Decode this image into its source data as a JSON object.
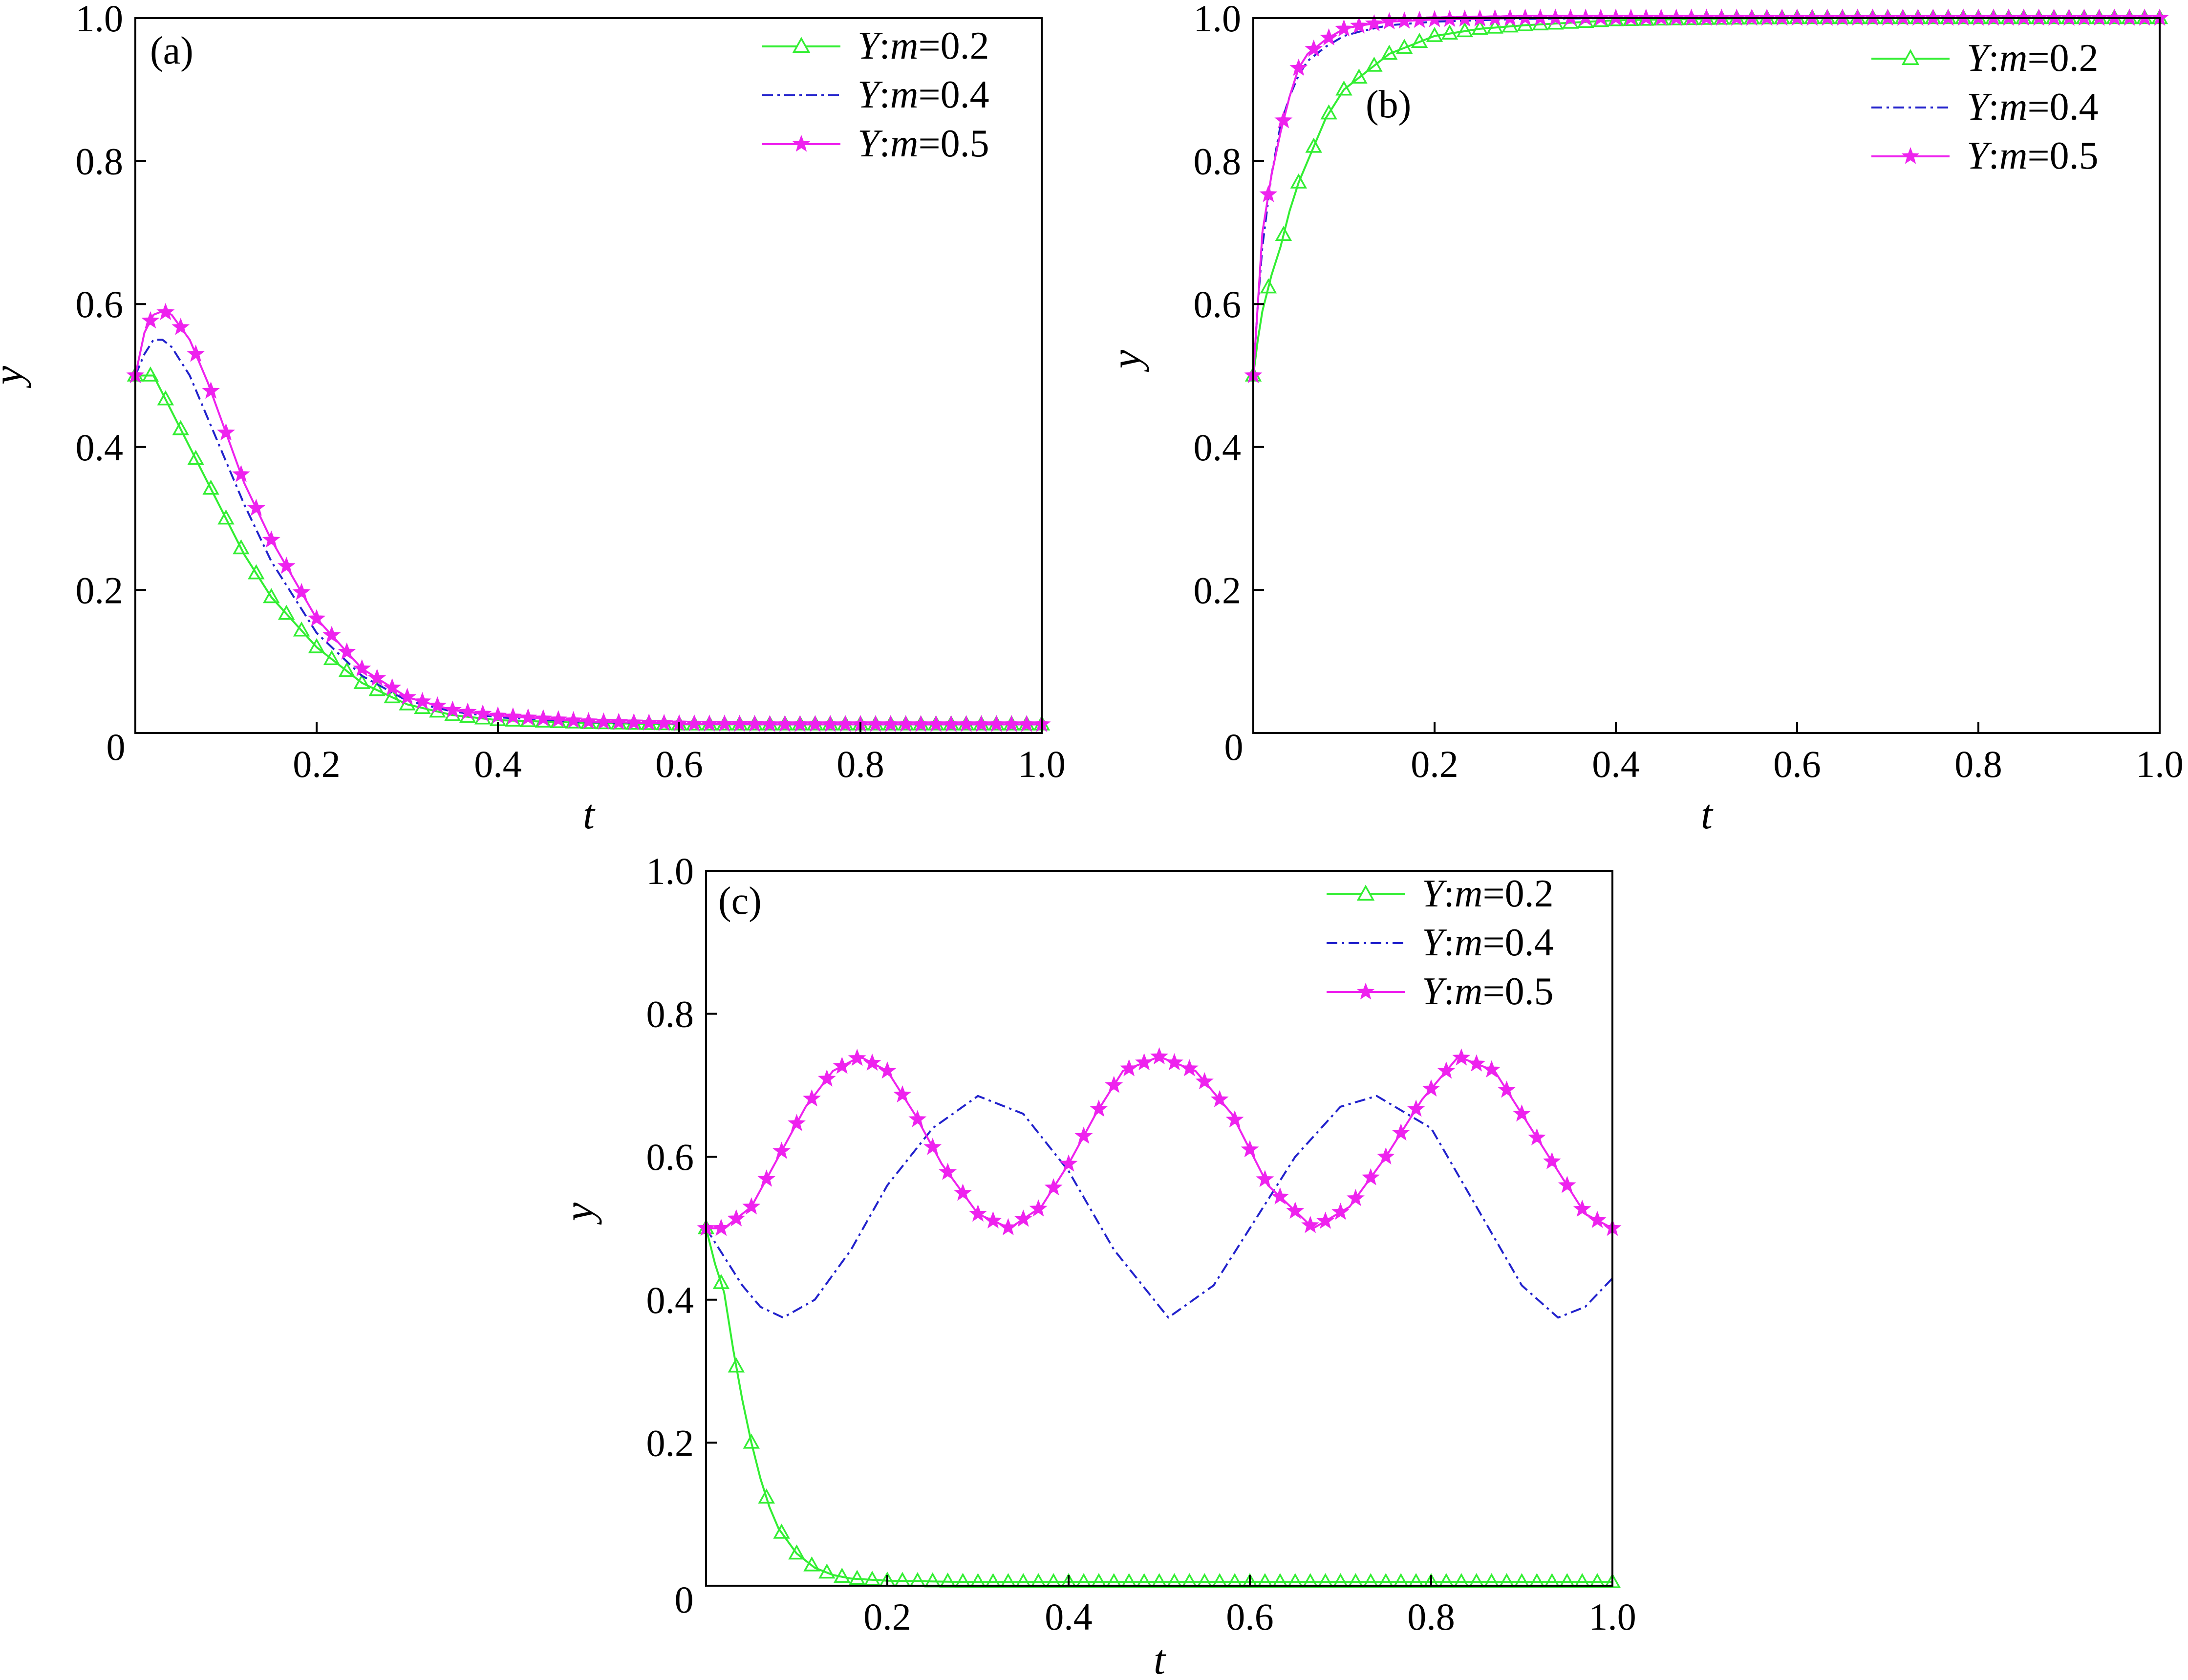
{
  "figure": {
    "colors": {
      "green": "#33ee33",
      "blue": "#2222cc",
      "magenta": "#ee22ee"
    },
    "legend_labels": [
      {
        "series": "Y",
        "param": "m",
        "value": "=0.2",
        "style": "solid-triangle",
        "color": "#33ee33"
      },
      {
        "series": "Y",
        "param": "m",
        "value": "=0.4",
        "style": "dash-dot",
        "color": "#2222cc"
      },
      {
        "series": "Y",
        "param": "m",
        "value": "=0.5",
        "style": "solid-star",
        "color": "#ee22ee"
      }
    ]
  },
  "chart_data": [
    {
      "panel": "(a)",
      "type": "line",
      "xlabel": "t",
      "ylabel": "y",
      "xlim": [
        0,
        1.0
      ],
      "ylim": [
        0,
        1.0
      ],
      "xticks": [
        "0.2",
        "0.4",
        "0.6",
        "0.8",
        "1.0"
      ],
      "yticks": [
        "0.2",
        "0.4",
        "0.6",
        "0.8",
        "1.0"
      ],
      "origin_label": "0",
      "legend": "top-right",
      "series": [
        {
          "name": "Y:m=0.2",
          "color": "#33ee33",
          "marker": "triangle",
          "x": [
            0,
            0.02,
            0.04,
            0.06,
            0.08,
            0.1,
            0.12,
            0.15,
            0.2,
            0.25,
            0.3,
            0.35,
            0.4,
            0.5,
            0.6,
            0.7,
            0.8,
            0.9,
            1.0
          ],
          "y": [
            0.5,
            0.5,
            0.45,
            0.4,
            0.35,
            0.3,
            0.25,
            0.19,
            0.12,
            0.07,
            0.04,
            0.025,
            0.018,
            0.014,
            0.012,
            0.012,
            0.012,
            0.012,
            0.012
          ]
        },
        {
          "name": "Y:m=0.4",
          "color": "#2222cc",
          "marker": "none",
          "x": [
            0,
            0.01,
            0.02,
            0.03,
            0.04,
            0.06,
            0.08,
            0.1,
            0.12,
            0.15,
            0.2,
            0.25,
            0.3,
            0.35,
            0.4,
            0.5,
            0.6,
            0.7,
            0.8,
            0.9,
            1.0
          ],
          "y": [
            0.5,
            0.53,
            0.55,
            0.55,
            0.54,
            0.5,
            0.44,
            0.38,
            0.32,
            0.24,
            0.14,
            0.08,
            0.045,
            0.03,
            0.022,
            0.015,
            0.013,
            0.012,
            0.012,
            0.012,
            0.012
          ]
        },
        {
          "name": "Y:m=0.5",
          "color": "#ee22ee",
          "marker": "star",
          "x": [
            0,
            0.01,
            0.02,
            0.03,
            0.04,
            0.06,
            0.08,
            0.1,
            0.12,
            0.15,
            0.2,
            0.25,
            0.3,
            0.35,
            0.4,
            0.5,
            0.6,
            0.7,
            0.8,
            0.9,
            1.0
          ],
          "y": [
            0.5,
            0.56,
            0.585,
            0.59,
            0.585,
            0.55,
            0.49,
            0.42,
            0.35,
            0.27,
            0.16,
            0.09,
            0.05,
            0.032,
            0.024,
            0.016,
            0.013,
            0.012,
            0.012,
            0.012,
            0.012
          ]
        }
      ]
    },
    {
      "panel": "(b)",
      "type": "line",
      "xlabel": "t",
      "ylabel": "y",
      "xlim": [
        0,
        1.0
      ],
      "ylim": [
        0,
        1.0
      ],
      "xticks": [
        "0.2",
        "0.4",
        "0.6",
        "0.8",
        "1.0"
      ],
      "yticks": [
        "0.2",
        "0.4",
        "0.6",
        "0.8",
        "1.0"
      ],
      "origin_label": "0",
      "legend": "top-right",
      "series": [
        {
          "name": "Y:m=0.2",
          "color": "#33ee33",
          "marker": "triangle",
          "x": [
            0,
            0.005,
            0.01,
            0.02,
            0.03,
            0.04,
            0.05,
            0.06,
            0.08,
            0.1,
            0.12,
            0.15,
            0.2,
            0.25,
            0.3,
            0.4,
            0.5,
            0.6,
            0.8,
            1.0
          ],
          "y": [
            0.5,
            0.55,
            0.59,
            0.64,
            0.68,
            0.73,
            0.77,
            0.8,
            0.86,
            0.9,
            0.92,
            0.95,
            0.975,
            0.985,
            0.99,
            0.997,
            0.999,
            1.0,
            1.0,
            1.0
          ]
        },
        {
          "name": "Y:m=0.4",
          "color": "#2222cc",
          "marker": "none",
          "x": [
            0,
            0.005,
            0.01,
            0.02,
            0.03,
            0.04,
            0.05,
            0.06,
            0.08,
            0.1,
            0.12,
            0.15,
            0.2,
            0.3,
            0.4,
            0.6,
            0.8,
            1.0
          ],
          "y": [
            0.5,
            0.6,
            0.68,
            0.78,
            0.85,
            0.89,
            0.92,
            0.94,
            0.96,
            0.975,
            0.982,
            0.99,
            0.995,
            0.999,
            1.0,
            1.0,
            1.0,
            1.0
          ]
        },
        {
          "name": "Y:m=0.5",
          "color": "#ee22ee",
          "marker": "star",
          "x": [
            0,
            0.005,
            0.01,
            0.02,
            0.03,
            0.04,
            0.05,
            0.06,
            0.08,
            0.1,
            0.12,
            0.15,
            0.2,
            0.3,
            0.4,
            0.6,
            0.8,
            1.0
          ],
          "y": [
            0.5,
            0.6,
            0.7,
            0.78,
            0.84,
            0.89,
            0.93,
            0.95,
            0.97,
            0.985,
            0.99,
            0.995,
            0.998,
            1.0,
            1.0,
            1.0,
            1.0,
            1.0
          ]
        }
      ]
    },
    {
      "panel": "(c)",
      "type": "line",
      "xlabel": "t",
      "ylabel": "y",
      "xlim": [
        0,
        1.0
      ],
      "ylim": [
        0,
        1.0
      ],
      "xticks": [
        "0.2",
        "0.4",
        "0.6",
        "0.8",
        "1.0"
      ],
      "yticks": [
        "0.2",
        "0.4",
        "0.6",
        "0.8",
        "1.0"
      ],
      "origin_label": "0",
      "legend": "top-right",
      "series": [
        {
          "name": "Y:m=0.2",
          "color": "#33ee33",
          "marker": "triangle",
          "x": [
            0,
            0.01,
            0.02,
            0.03,
            0.04,
            0.05,
            0.06,
            0.07,
            0.08,
            0.1,
            0.12,
            0.14,
            0.16,
            0.2,
            0.3,
            0.4,
            0.6,
            0.8,
            1.0
          ],
          "y": [
            0.5,
            0.45,
            0.41,
            0.33,
            0.26,
            0.2,
            0.15,
            0.11,
            0.08,
            0.045,
            0.025,
            0.015,
            0.01,
            0.007,
            0.005,
            0.005,
            0.005,
            0.005,
            0.005
          ]
        },
        {
          "name": "Y:m=0.4",
          "color": "#2222cc",
          "marker": "none",
          "x": [
            0,
            0.02,
            0.04,
            0.06,
            0.085,
            0.12,
            0.16,
            0.2,
            0.25,
            0.3,
            0.35,
            0.4,
            0.45,
            0.51,
            0.56,
            0.6,
            0.65,
            0.7,
            0.74,
            0.8,
            0.85,
            0.9,
            0.94,
            0.97,
            1.0
          ],
          "y": [
            0.5,
            0.46,
            0.42,
            0.39,
            0.375,
            0.4,
            0.47,
            0.56,
            0.64,
            0.685,
            0.66,
            0.58,
            0.47,
            0.375,
            0.42,
            0.5,
            0.6,
            0.67,
            0.685,
            0.64,
            0.53,
            0.42,
            0.375,
            0.39,
            0.43
          ]
        },
        {
          "name": "Y:m=0.5",
          "color": "#ee22ee",
          "marker": "star",
          "x": [
            0,
            0.02,
            0.05,
            0.08,
            0.11,
            0.14,
            0.17,
            0.2,
            0.23,
            0.26,
            0.3,
            0.335,
            0.37,
            0.4,
            0.43,
            0.46,
            0.5,
            0.54,
            0.58,
            0.62,
            0.67,
            0.71,
            0.75,
            0.79,
            0.83,
            0.87,
            0.9,
            0.94,
            0.97,
            1.0
          ],
          "y": [
            0.5,
            0.5,
            0.53,
            0.6,
            0.67,
            0.72,
            0.74,
            0.72,
            0.66,
            0.59,
            0.52,
            0.5,
            0.53,
            0.59,
            0.66,
            0.72,
            0.74,
            0.72,
            0.66,
            0.56,
            0.5,
            0.53,
            0.6,
            0.68,
            0.74,
            0.72,
            0.66,
            0.58,
            0.52,
            0.5
          ]
        }
      ]
    }
  ]
}
